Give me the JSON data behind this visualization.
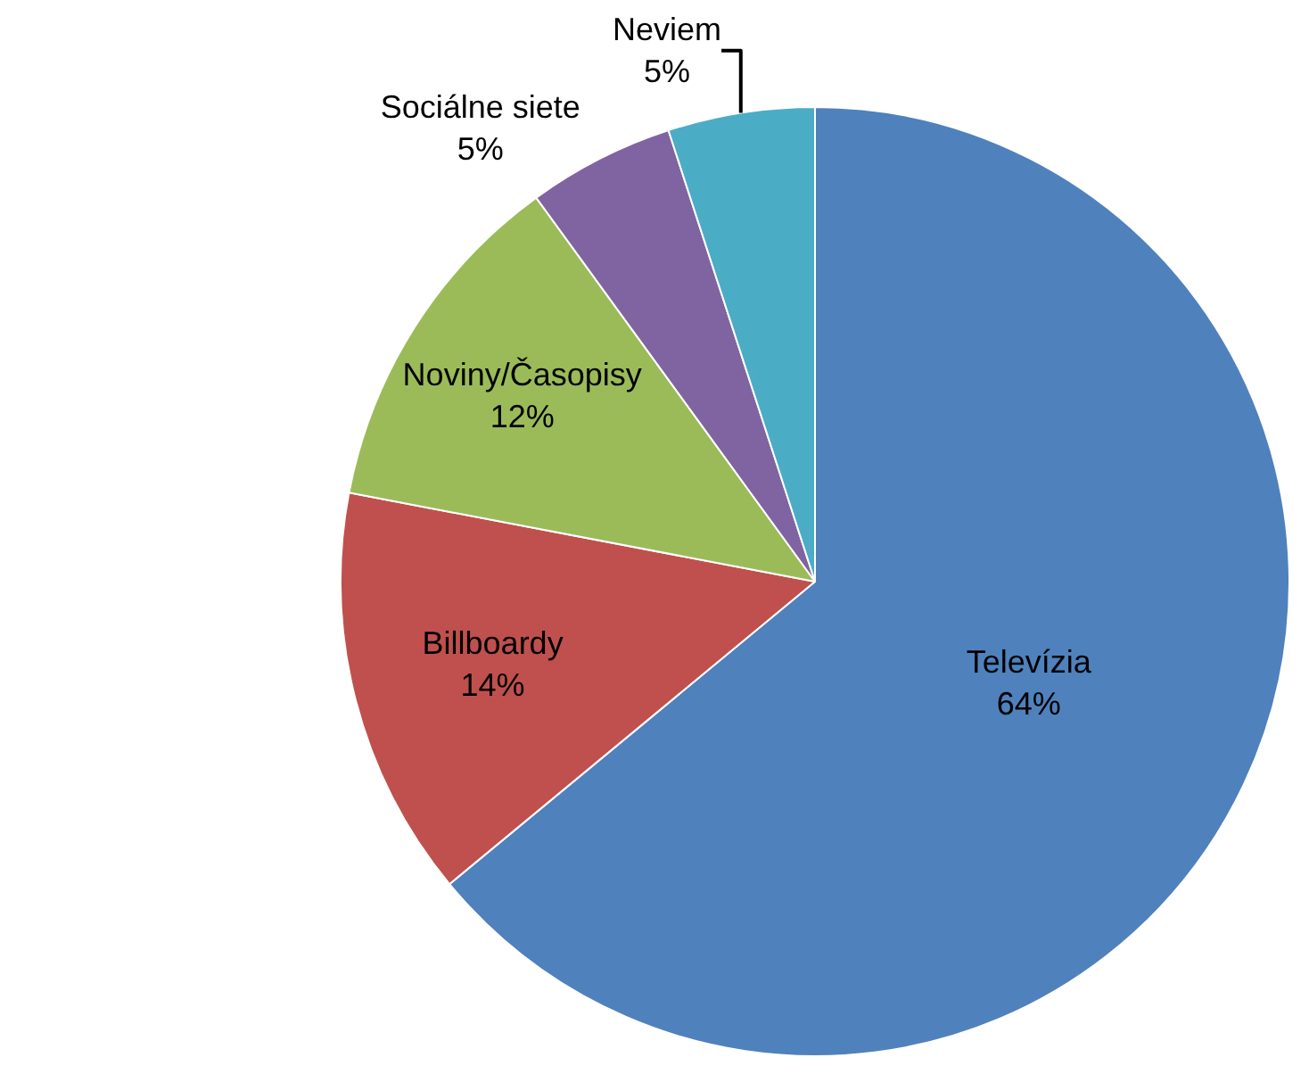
{
  "chart_data": {
    "type": "pie",
    "categories": [
      "Televízia",
      "Billboardy",
      "Noviny/Časopisy",
      "Sociálne siete",
      "Neviem"
    ],
    "values": [
      64,
      14,
      12,
      5,
      5
    ],
    "value_labels": [
      "64%",
      "14%",
      "12%",
      "5%",
      "5%"
    ],
    "colors": [
      "#4f81bd",
      "#c0504d",
      "#9bbb59",
      "#8064a2",
      "#4bacc6"
    ],
    "legend": false
  }
}
